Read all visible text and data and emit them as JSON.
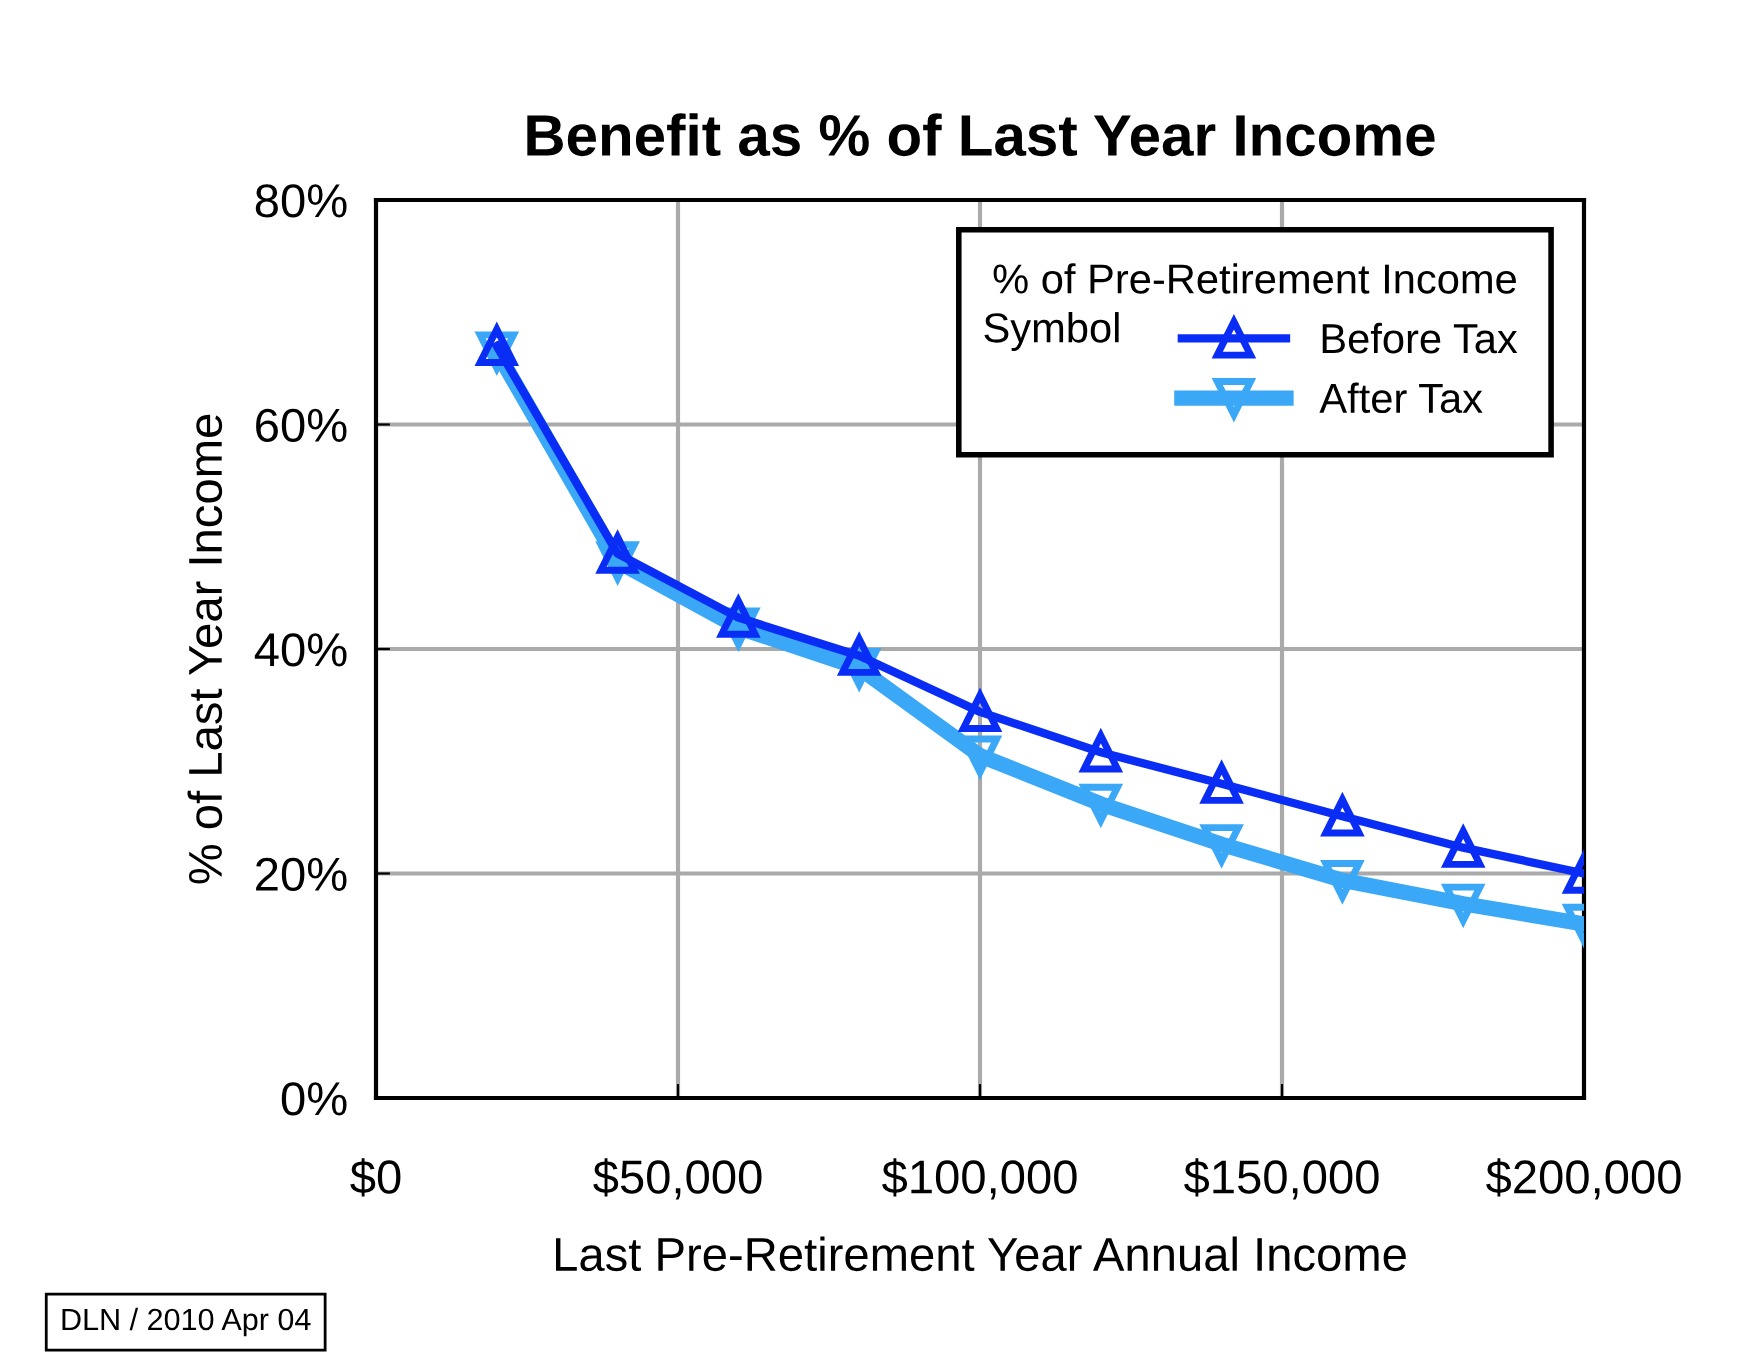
{
  "chart_data": {
    "type": "line",
    "title": "Benefit as % of Last Year Income",
    "xlabel": "Last Pre-Retirement Year Annual Income",
    "ylabel": "% of Last Year Income",
    "legend_title": "% of Pre-Retirement Income",
    "annotations": [
      "Symbol",
      "DLN / 2010 Apr 04"
    ],
    "x": [
      20000,
      40000,
      60000,
      80000,
      100000,
      120000,
      140000,
      160000,
      180000,
      200000
    ],
    "series": [
      {
        "name": "Before Tax",
        "color": "#0a2df5",
        "marker": "triangle",
        "values": [
          67,
          48.5,
          42.8,
          39.4,
          34.4,
          30.8,
          28,
          25.1,
          22.3,
          20
        ]
      },
      {
        "name": "After Tax",
        "color": "#3aa8f7",
        "marker": "triangle_down",
        "values": [
          66.5,
          47.8,
          41.9,
          38.3,
          30.5,
          26.2,
          22.6,
          19.4,
          17.3,
          15.5
        ]
      }
    ],
    "xlim": [
      0,
      200000
    ],
    "ylim": [
      0,
      80
    ],
    "xticks": [
      {
        "value": 0,
        "label": "$0"
      },
      {
        "value": 50000,
        "label": "$50,000"
      },
      {
        "value": 100000,
        "label": "$100,000"
      },
      {
        "value": 150000,
        "label": "$150,000"
      },
      {
        "value": 200000,
        "label": "$200,000"
      }
    ],
    "yticks": [
      {
        "value": 0,
        "label": "0%"
      },
      {
        "value": 20,
        "label": "20%"
      },
      {
        "value": 40,
        "label": "40%"
      },
      {
        "value": 60,
        "label": "60%"
      },
      {
        "value": 80,
        "label": "80%"
      }
    ],
    "grid": true,
    "legend": "top right",
    "line_style": "solid"
  }
}
